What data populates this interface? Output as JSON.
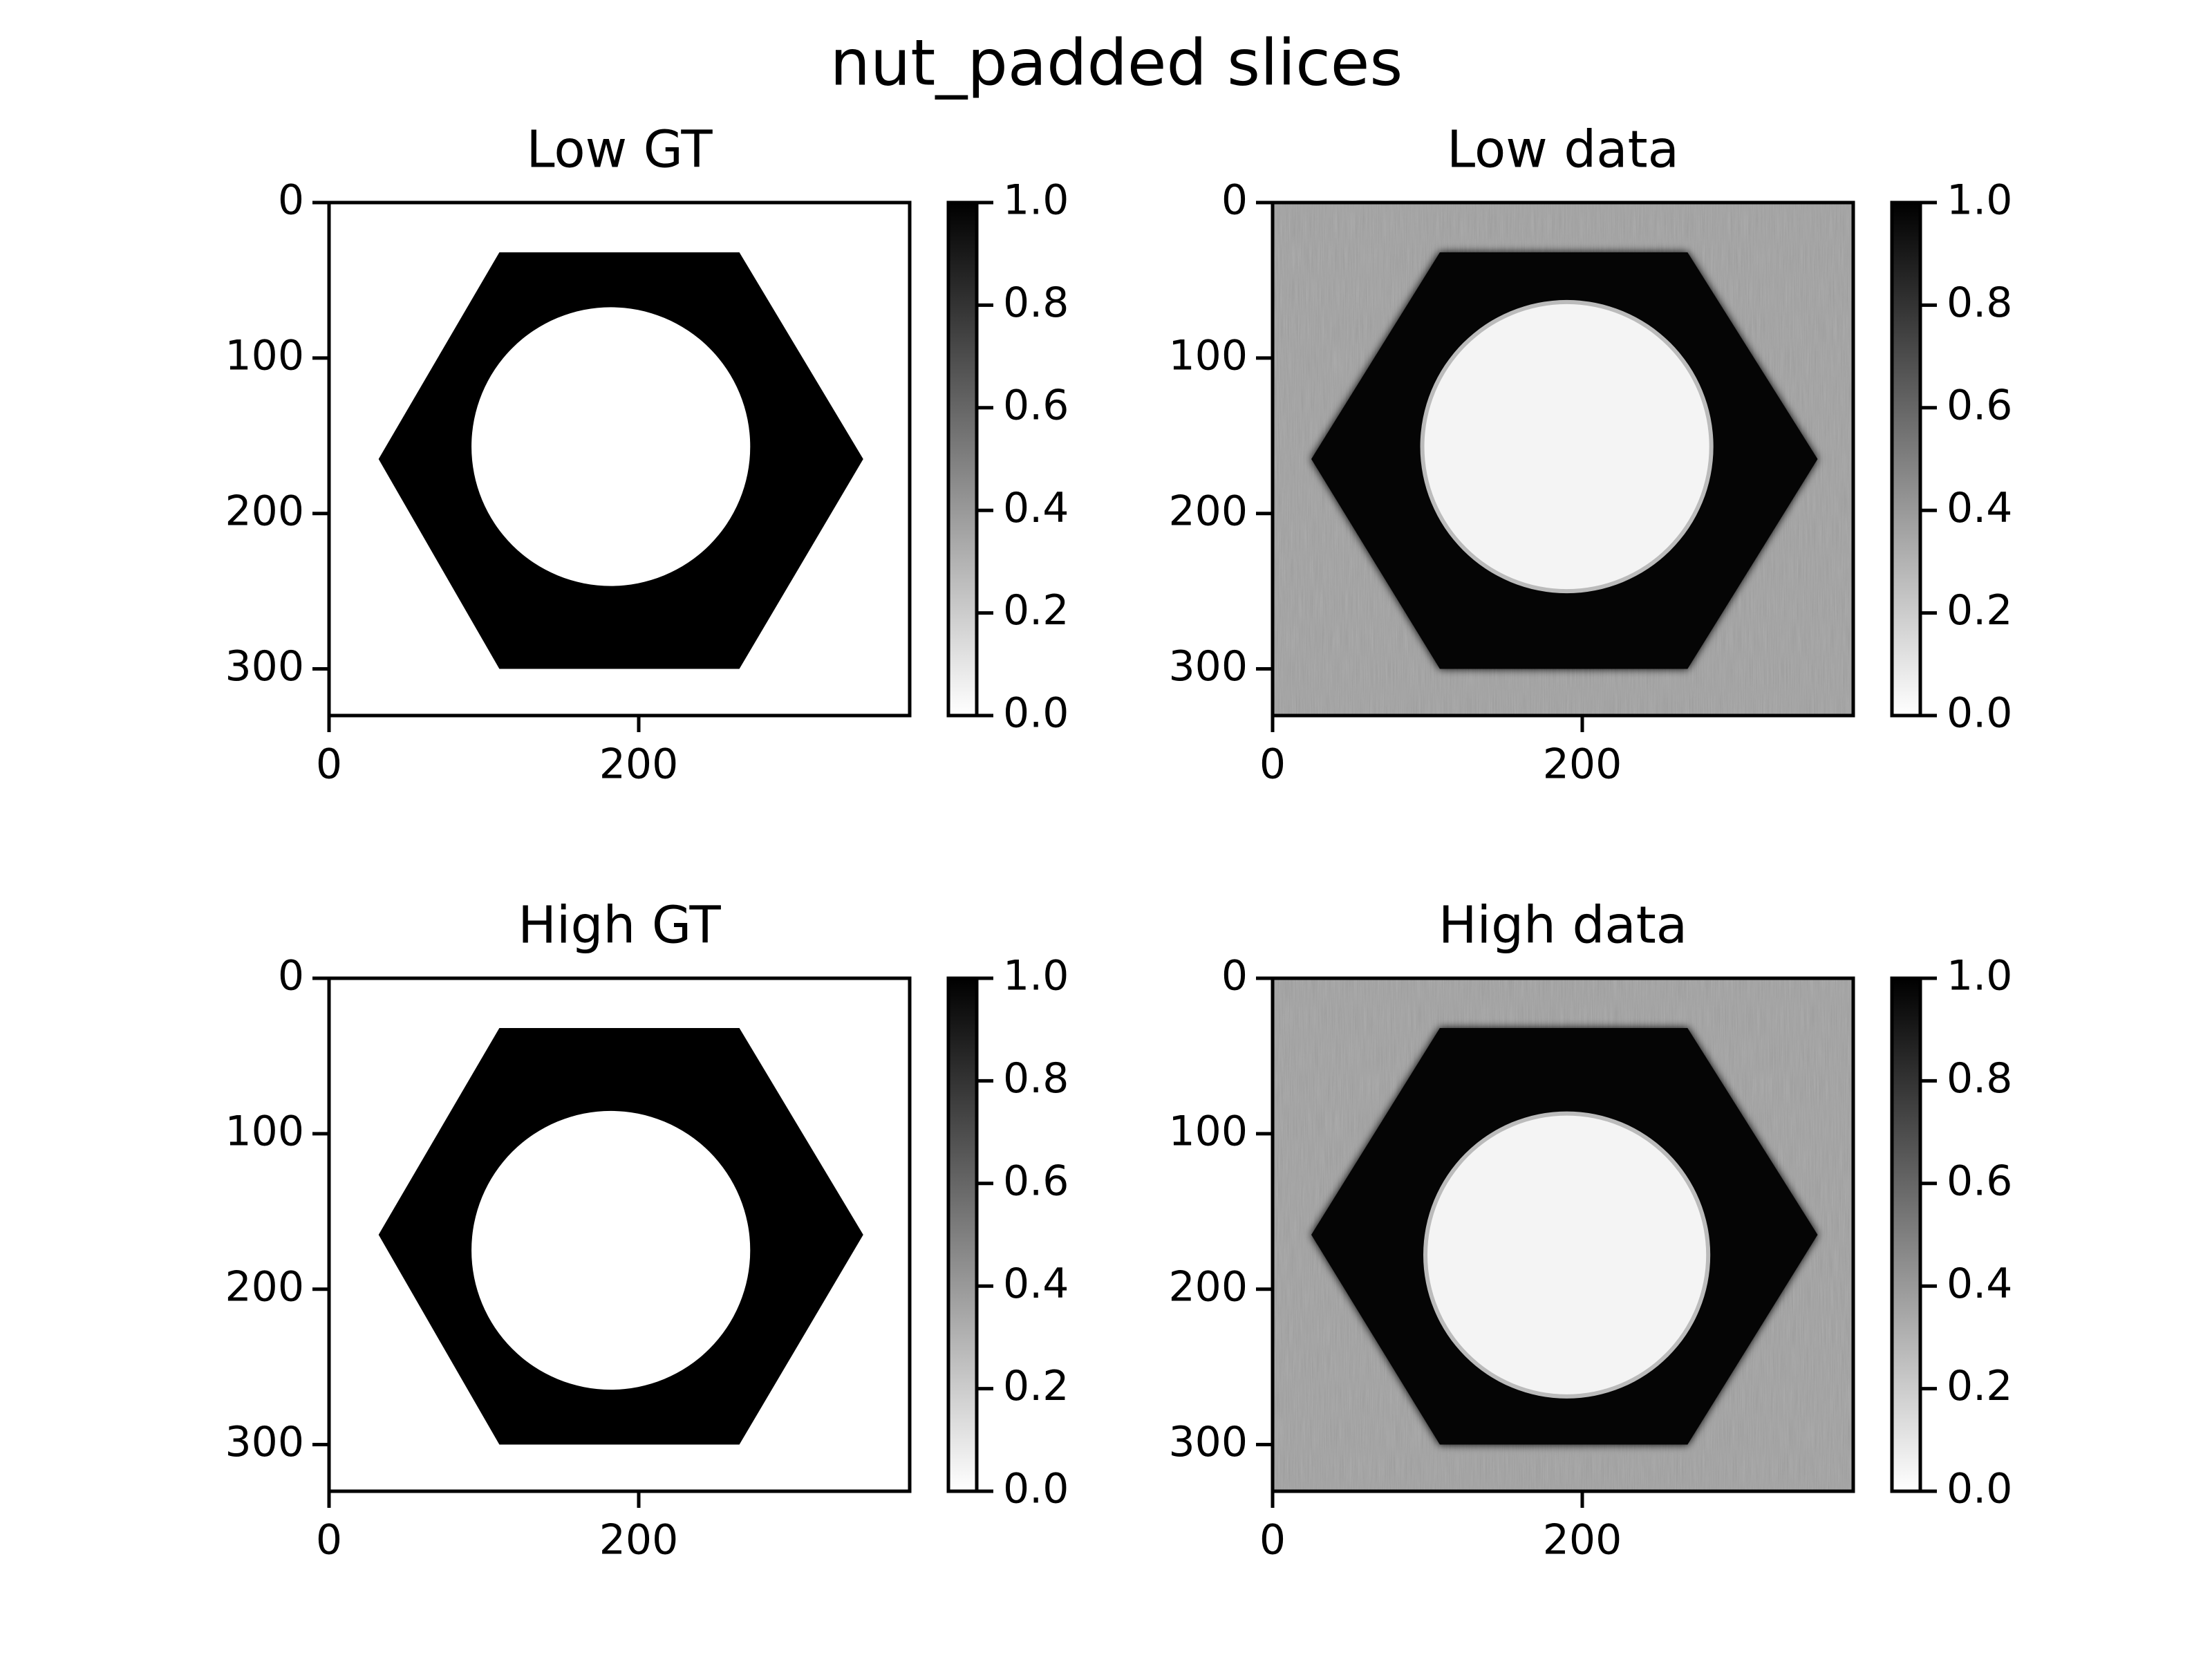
{
  "suptitle": "nut_padded slices",
  "chart_data": [
    {
      "type": "image",
      "title": "Low GT",
      "xlim": [
        0,
        375
      ],
      "ylim": [
        330,
        0
      ],
      "xticks": [
        0,
        200
      ],
      "yticks": [
        0,
        100,
        200,
        300
      ],
      "cmap": "gray_r",
      "clim": [
        0,
        1
      ],
      "cticks": [
        {
          "value": 0,
          "label": "0.0"
        },
        {
          "value": 0.2,
          "label": "0.2"
        },
        {
          "value": 0.4,
          "label": "0.4"
        },
        {
          "value": 0.6,
          "label": "0.6"
        },
        {
          "value": 0.8,
          "label": "0.8"
        },
        {
          "value": 1,
          "label": "1.0"
        }
      ]
    },
    {
      "type": "image",
      "title": "Low data",
      "xlim": [
        0,
        375
      ],
      "ylim": [
        330,
        0
      ],
      "xticks": [
        0,
        200
      ],
      "yticks": [
        0,
        100,
        200,
        300
      ],
      "cmap": "gray_r",
      "clim": [
        0,
        1
      ],
      "cticks": [
        {
          "value": 0,
          "label": "0.0"
        },
        {
          "value": 0.2,
          "label": "0.2"
        },
        {
          "value": 0.4,
          "label": "0.4"
        },
        {
          "value": 0.6,
          "label": "0.6"
        },
        {
          "value": 0.8,
          "label": "0.8"
        },
        {
          "value": 1,
          "label": "1.0"
        }
      ]
    },
    {
      "type": "image",
      "title": "High GT",
      "xlim": [
        0,
        375
      ],
      "ylim": [
        330,
        0
      ],
      "xticks": [
        0,
        200
      ],
      "yticks": [
        0,
        100,
        200,
        300
      ],
      "cmap": "gray_r",
      "clim": [
        0,
        1
      ],
      "cticks": [
        {
          "value": 0,
          "label": "0.0"
        },
        {
          "value": 0.2,
          "label": "0.2"
        },
        {
          "value": 0.4,
          "label": "0.4"
        },
        {
          "value": 0.6,
          "label": "0.6"
        },
        {
          "value": 0.8,
          "label": "0.8"
        },
        {
          "value": 1,
          "label": "1.0"
        }
      ]
    },
    {
      "type": "image",
      "title": "High data",
      "xlim": [
        0,
        375
      ],
      "ylim": [
        330,
        0
      ],
      "xticks": [
        0,
        200
      ],
      "yticks": [
        0,
        100,
        200,
        300
      ],
      "cmap": "gray_r",
      "clim": [
        0,
        1
      ],
      "cticks": [
        {
          "value": 0,
          "label": "0.0"
        },
        {
          "value": 0.2,
          "label": "0.2"
        },
        {
          "value": 0.4,
          "label": "0.4"
        },
        {
          "value": 0.6,
          "label": "0.6"
        },
        {
          "value": 0.8,
          "label": "0.8"
        },
        {
          "value": 1,
          "label": "1.0"
        }
      ]
    }
  ]
}
